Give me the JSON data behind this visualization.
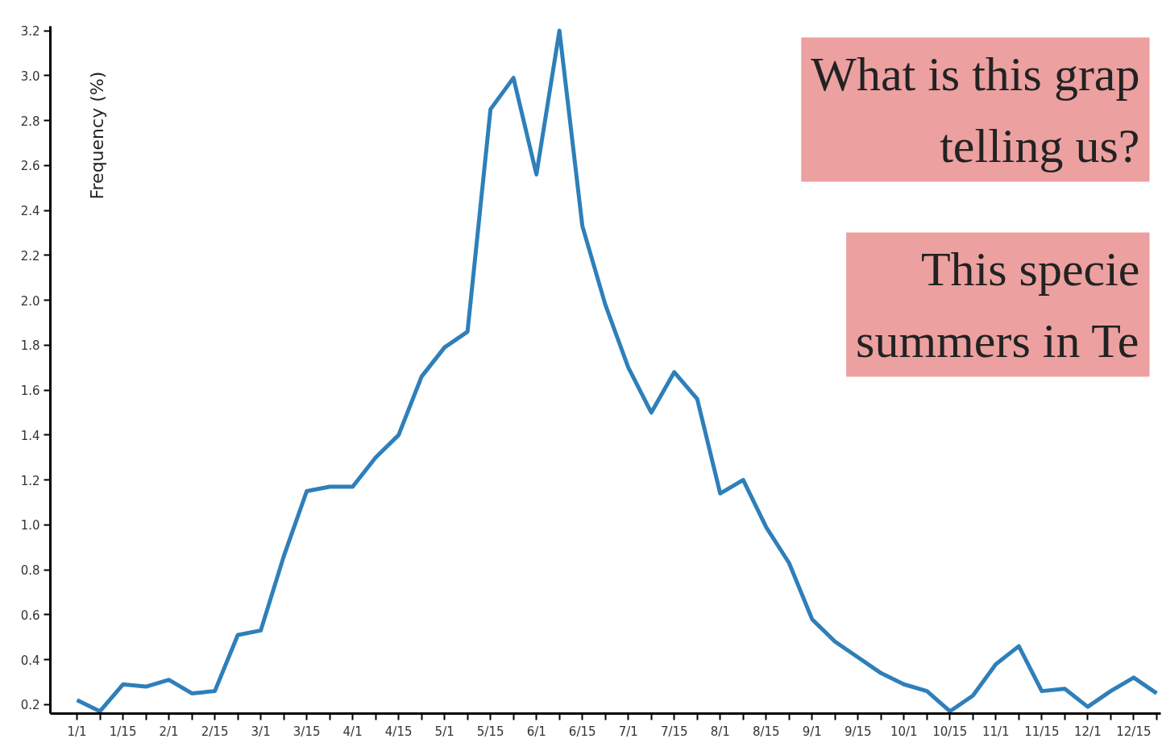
{
  "chart_data": {
    "type": "line",
    "ylabel": "Frequency (%)",
    "categories": [
      "1/1",
      null,
      "1/15",
      null,
      "2/1",
      null,
      "2/15",
      null,
      "3/1",
      null,
      "3/15",
      null,
      "4/1",
      null,
      "4/15",
      null,
      "5/1",
      null,
      "5/15",
      null,
      "6/1",
      null,
      "6/15",
      null,
      "7/1",
      null,
      "7/15",
      null,
      "8/1",
      null,
      "8/15",
      null,
      "9/1",
      null,
      "9/15",
      null,
      "10/1",
      null,
      "10/15",
      null,
      "11/1",
      null,
      "11/15",
      null,
      "12/1",
      null,
      "12/15",
      null
    ],
    "series": [
      {
        "color": "#2e7fba",
        "values": [
          0.22,
          0.17,
          0.29,
          0.28,
          0.31,
          0.25,
          0.26,
          0.51,
          0.53,
          0.86,
          1.15,
          1.17,
          1.17,
          1.3,
          1.4,
          1.66,
          1.79,
          1.86,
          2.85,
          2.99,
          2.56,
          3.2,
          2.33,
          1.98,
          1.7,
          1.5,
          1.68,
          1.56,
          1.14,
          1.2,
          0.99,
          0.83,
          0.58,
          0.48,
          0.41,
          0.34,
          0.29,
          0.26,
          0.17,
          0.24,
          0.38,
          0.46,
          0.26,
          0.27,
          0.19,
          0.26,
          0.32,
          0.25
        ]
      }
    ],
    "ylim": [
      0.16,
      3.22
    ],
    "yticks": [
      {
        "value": 0.2,
        "label": "0.2"
      },
      {
        "value": 0.4,
        "label": "0.4"
      },
      {
        "value": 0.6,
        "label": "0.6"
      },
      {
        "value": 0.8,
        "label": "0.8"
      },
      {
        "value": 1.0,
        "label": "1.0"
      },
      {
        "value": 1.2,
        "label": "1.2"
      },
      {
        "value": 1.4,
        "label": "1.4"
      },
      {
        "value": 1.6,
        "label": "1.6"
      },
      {
        "value": 1.8,
        "label": "1.8"
      },
      {
        "value": 2.0,
        "label": "2.0"
      },
      {
        "value": 2.2,
        "label": "2.2"
      },
      {
        "value": 2.4,
        "label": "2.4"
      },
      {
        "value": 2.6,
        "label": "2.6"
      },
      {
        "value": 2.8,
        "label": "2.8"
      },
      {
        "value": 3.0,
        "label": "3.0"
      },
      {
        "value": 3.2,
        "label": "3.2"
      }
    ],
    "grid": false,
    "marker": "none",
    "line_style": "solid",
    "annotations": [
      "What is this grap\ntelling us?",
      "This specie\nsummers in Te"
    ]
  }
}
